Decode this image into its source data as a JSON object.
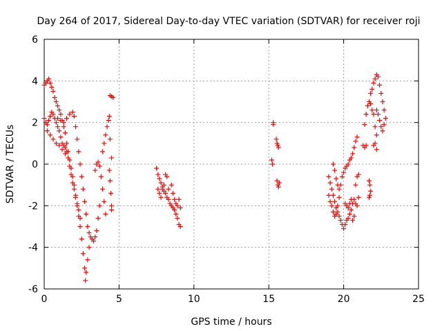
{
  "chart_data": {
    "type": "scatter",
    "title": "Day 264 of 2017, Sidereal Day-to-day VTEC variation (SDTVAR) for receiver roji",
    "xlabel": "GPS time / hours",
    "ylabel": "SDTVAR / TECUs",
    "xlim": [
      0,
      25
    ],
    "ylim": [
      -6,
      6
    ],
    "xticks": [
      "0",
      "5",
      "10",
      "15",
      "20",
      "25"
    ],
    "yticks": [
      "-6",
      "-4",
      "-2",
      "0",
      "2",
      "4",
      "6"
    ],
    "grid": true,
    "marker": "plus",
    "color": "#ff0000",
    "series": [
      {
        "points": [
          [
            0.0,
            3.8
          ],
          [
            0.1,
            3.9
          ],
          [
            0.2,
            4.0
          ],
          [
            0.3,
            4.1
          ],
          [
            0.4,
            3.9
          ],
          [
            0.5,
            3.7
          ],
          [
            0.6,
            3.5
          ],
          [
            0.7,
            3.2
          ],
          [
            0.8,
            3.0
          ],
          [
            0.9,
            2.8
          ],
          [
            1.0,
            2.6
          ],
          [
            1.1,
            2.4
          ],
          [
            1.2,
            2.1
          ],
          [
            1.3,
            1.8
          ],
          [
            1.4,
            1.5
          ],
          [
            1.5,
            1.0
          ],
          [
            1.6,
            0.6
          ],
          [
            1.7,
            0.2
          ],
          [
            1.8,
            -0.2
          ],
          [
            1.9,
            -0.6
          ],
          [
            2.0,
            -1.0
          ],
          [
            2.1,
            -1.5
          ],
          [
            2.2,
            -2.0
          ],
          [
            2.3,
            -2.5
          ],
          [
            2.4,
            -3.0
          ],
          [
            2.5,
            -3.6
          ],
          [
            2.6,
            -4.3
          ],
          [
            2.7,
            -5.0
          ],
          [
            2.75,
            -5.6
          ],
          [
            2.8,
            -5.2
          ],
          [
            2.9,
            -4.6
          ],
          [
            3.0,
            -4.0
          ],
          [
            0.0,
            2.2
          ],
          [
            0.1,
            2.0
          ],
          [
            0.2,
            1.9
          ],
          [
            0.3,
            2.1
          ],
          [
            0.4,
            2.3
          ],
          [
            0.5,
            2.5
          ],
          [
            0.6,
            2.4
          ],
          [
            0.7,
            2.2
          ],
          [
            0.8,
            2.0
          ],
          [
            0.9,
            1.8
          ],
          [
            1.0,
            1.6
          ],
          [
            1.1,
            1.3
          ],
          [
            1.2,
            1.0
          ],
          [
            1.3,
            0.9
          ],
          [
            1.4,
            0.8
          ],
          [
            1.5,
            0.6
          ],
          [
            0.2,
            1.6
          ],
          [
            0.4,
            1.4
          ],
          [
            0.6,
            1.2
          ],
          [
            0.8,
            1.0
          ],
          [
            1.0,
            0.9
          ],
          [
            1.2,
            0.7
          ],
          [
            1.4,
            0.5
          ],
          [
            1.6,
            0.3
          ],
          [
            1.7,
            -0.1
          ],
          [
            1.8,
            -0.5
          ],
          [
            1.9,
            -0.9
          ],
          [
            2.0,
            -1.2
          ],
          [
            2.1,
            -1.6
          ],
          [
            2.2,
            -1.9
          ],
          [
            2.3,
            -2.2
          ],
          [
            2.4,
            -2.6
          ],
          [
            0.9,
            2.2
          ],
          [
            1.1,
            2.1
          ],
          [
            1.3,
            2.0
          ],
          [
            1.5,
            2.2
          ],
          [
            1.7,
            2.4
          ],
          [
            1.9,
            2.5
          ],
          [
            2.0,
            2.3
          ],
          [
            2.1,
            1.8
          ],
          [
            2.2,
            1.2
          ],
          [
            2.3,
            0.6
          ],
          [
            2.4,
            0.0
          ],
          [
            2.5,
            -0.6
          ],
          [
            2.6,
            -1.2
          ],
          [
            2.7,
            -1.8
          ],
          [
            2.8,
            -2.4
          ],
          [
            2.9,
            -3.0
          ],
          [
            3.0,
            -3.3
          ],
          [
            3.1,
            -3.5
          ],
          [
            3.2,
            -3.6
          ],
          [
            3.3,
            -3.7
          ],
          [
            3.4,
            -3.5
          ],
          [
            3.5,
            -3.2
          ],
          [
            3.6,
            -2.6
          ],
          [
            3.7,
            -2.0
          ],
          [
            3.4,
            -0.3
          ],
          [
            3.5,
            0.0
          ],
          [
            3.6,
            0.1
          ],
          [
            3.7,
            -0.1
          ],
          [
            3.8,
            -0.6
          ],
          [
            3.9,
            -1.2
          ],
          [
            4.0,
            -1.8
          ],
          [
            4.1,
            -2.4
          ],
          [
            3.9,
            0.6
          ],
          [
            4.0,
            1.0
          ],
          [
            4.1,
            1.4
          ],
          [
            4.2,
            1.8
          ],
          [
            4.3,
            2.1
          ],
          [
            4.35,
            2.3
          ],
          [
            4.4,
            1.2
          ],
          [
            4.5,
            0.3
          ],
          [
            4.4,
            3.3
          ],
          [
            4.5,
            3.25
          ],
          [
            4.6,
            3.2
          ],
          [
            4.35,
            -0.3
          ],
          [
            4.4,
            -0.8
          ],
          [
            4.45,
            -1.4
          ],
          [
            4.5,
            -2.0
          ],
          [
            4.5,
            -2.2
          ],
          [
            7.5,
            -0.2
          ],
          [
            7.6,
            -0.5
          ],
          [
            7.7,
            -0.7
          ],
          [
            7.8,
            -0.9
          ],
          [
            7.9,
            -1.1
          ],
          [
            8.0,
            -1.3
          ],
          [
            8.1,
            -1.4
          ],
          [
            8.2,
            -1.6
          ],
          [
            8.3,
            -1.7
          ],
          [
            8.4,
            -1.9
          ],
          [
            8.5,
            -2.0
          ],
          [
            8.6,
            -2.1
          ],
          [
            8.7,
            -2.2
          ],
          [
            8.8,
            -2.4
          ],
          [
            8.9,
            -2.6
          ],
          [
            9.0,
            -2.9
          ],
          [
            7.6,
            -1.2
          ],
          [
            7.7,
            -1.4
          ],
          [
            7.8,
            -1.6
          ],
          [
            7.9,
            -1.2
          ],
          [
            8.0,
            -1.0
          ],
          [
            8.1,
            -0.5
          ],
          [
            8.2,
            -0.6
          ],
          [
            8.3,
            -1.2
          ],
          [
            8.5,
            -1.0
          ],
          [
            8.6,
            -1.4
          ],
          [
            8.7,
            -1.7
          ],
          [
            8.8,
            -1.9
          ],
          [
            8.9,
            -2.0
          ],
          [
            9.0,
            -1.7
          ],
          [
            9.1,
            -2.1
          ],
          [
            9.1,
            -3.0
          ],
          [
            15.2,
            0.2
          ],
          [
            15.25,
            0.0
          ],
          [
            15.3,
            2.0
          ],
          [
            15.3,
            1.9
          ],
          [
            15.5,
            1.2
          ],
          [
            15.55,
            1.0
          ],
          [
            15.6,
            0.9
          ],
          [
            15.65,
            0.8
          ],
          [
            15.55,
            -0.8
          ],
          [
            15.6,
            -1.0
          ],
          [
            15.65,
            -1.1
          ],
          [
            15.7,
            -0.9
          ],
          [
            19.0,
            -0.6
          ],
          [
            19.1,
            -0.9
          ],
          [
            19.2,
            -1.2
          ],
          [
            19.3,
            -1.5
          ],
          [
            19.4,
            -1.8
          ],
          [
            19.5,
            -2.1
          ],
          [
            19.6,
            -2.3
          ],
          [
            19.7,
            -2.5
          ],
          [
            19.8,
            -2.7
          ],
          [
            19.9,
            -2.9
          ],
          [
            20.0,
            -3.1
          ],
          [
            20.1,
            -2.9
          ],
          [
            20.2,
            -2.7
          ],
          [
            20.3,
            -2.6
          ],
          [
            20.4,
            -2.4
          ],
          [
            20.5,
            -2.2
          ],
          [
            19.0,
            -1.5
          ],
          [
            19.1,
            -1.8
          ],
          [
            19.2,
            -2.0
          ],
          [
            19.3,
            -2.3
          ],
          [
            19.4,
            -2.5
          ],
          [
            19.5,
            -2.4
          ],
          [
            19.6,
            -2.0
          ],
          [
            19.7,
            -1.6
          ],
          [
            19.3,
            0.0
          ],
          [
            19.4,
            -0.3
          ],
          [
            19.5,
            -0.7
          ],
          [
            19.6,
            -1.0
          ],
          [
            19.7,
            -1.2
          ],
          [
            19.8,
            -1.0
          ],
          [
            19.9,
            -0.6
          ],
          [
            20.0,
            -0.4
          ],
          [
            20.1,
            -0.2
          ],
          [
            20.2,
            -0.1
          ],
          [
            20.3,
            0.0
          ],
          [
            20.4,
            0.2
          ],
          [
            20.5,
            0.3
          ],
          [
            20.6,
            0.5
          ],
          [
            20.7,
            0.8
          ],
          [
            20.8,
            1.1
          ],
          [
            20.9,
            1.3
          ],
          [
            20.6,
            -1.9
          ],
          [
            20.7,
            -1.7
          ],
          [
            20.8,
            -1.9
          ],
          [
            20.9,
            -2.0
          ],
          [
            21.0,
            -1.6
          ],
          [
            20.8,
            -1.0
          ],
          [
            20.9,
            -0.6
          ],
          [
            21.0,
            -0.5
          ],
          [
            20.1,
            -1.9
          ],
          [
            20.2,
            -2.0
          ],
          [
            20.3,
            -2.1
          ],
          [
            20.4,
            -1.9
          ],
          [
            20.5,
            -1.7
          ],
          [
            20.6,
            -2.7
          ],
          [
            20.7,
            -2.5
          ],
          [
            21.3,
            0.9
          ],
          [
            21.4,
            0.8
          ],
          [
            21.5,
            0.9
          ],
          [
            21.4,
            1.9
          ],
          [
            21.5,
            2.4
          ],
          [
            21.6,
            2.8
          ],
          [
            21.7,
            3.0
          ],
          [
            21.8,
            3.4
          ],
          [
            21.9,
            3.6
          ],
          [
            22.0,
            3.9
          ],
          [
            22.1,
            4.1
          ],
          [
            22.2,
            4.3
          ],
          [
            22.3,
            4.2
          ],
          [
            22.4,
            3.8
          ],
          [
            22.5,
            3.4
          ],
          [
            22.6,
            3.0
          ],
          [
            22.7,
            2.6
          ],
          [
            22.8,
            2.2
          ],
          [
            22.7,
            1.9
          ],
          [
            22.6,
            1.6
          ],
          [
            22.5,
            1.8
          ],
          [
            22.4,
            2.1
          ],
          [
            22.3,
            2.4
          ],
          [
            22.2,
            2.6
          ],
          [
            21.8,
            2.9
          ],
          [
            21.9,
            2.6
          ],
          [
            22.0,
            2.4
          ],
          [
            22.1,
            1.8
          ],
          [
            22.2,
            1.4
          ],
          [
            22.1,
            1.0
          ],
          [
            22.0,
            0.9
          ],
          [
            22.2,
            0.7
          ],
          [
            21.7,
            -0.8
          ],
          [
            21.75,
            -1.0
          ],
          [
            21.8,
            -1.3
          ],
          [
            21.7,
            -1.6
          ],
          [
            21.75,
            -1.5
          ]
        ]
      }
    ]
  }
}
